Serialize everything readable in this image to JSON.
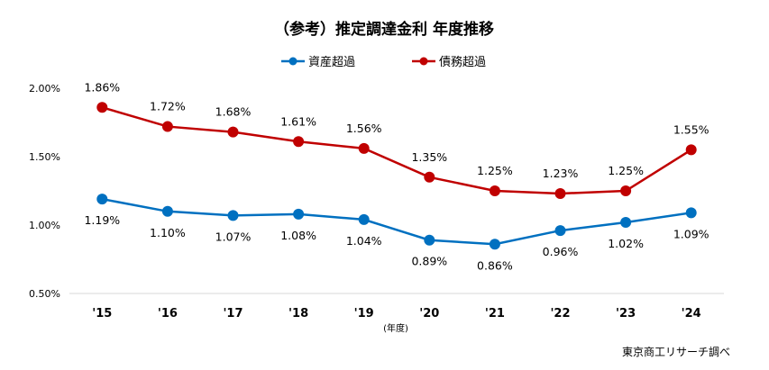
{
  "chart_data": {
    "type": "line",
    "title": "（参考）推定調達金利 年度推移",
    "xlabel": "(年度)",
    "ylabel": "",
    "categories": [
      "'15",
      "'16",
      "'17",
      "'18",
      "'19",
      "'20",
      "'21",
      "'22",
      "'23",
      "'24"
    ],
    "ylim": [
      0.5,
      2.0
    ],
    "yticks": [
      "0.50%",
      "1.00%",
      "1.50%",
      "2.00%"
    ],
    "ytick_values": [
      0.5,
      1.0,
      1.5,
      2.0
    ],
    "grid": false,
    "legend_position": "top",
    "series": [
      {
        "name": "資産超過",
        "color": "#0070C0",
        "values": [
          1.19,
          1.1,
          1.07,
          1.08,
          1.04,
          0.89,
          0.86,
          0.96,
          1.02,
          1.09
        ],
        "labels": [
          "1.19%",
          "1.10%",
          "1.07%",
          "1.08%",
          "1.04%",
          "0.89%",
          "0.86%",
          "0.96%",
          "1.02%",
          "1.09%"
        ]
      },
      {
        "name": "債務超過",
        "color": "#C00000",
        "values": [
          1.86,
          1.72,
          1.68,
          1.61,
          1.56,
          1.35,
          1.25,
          1.23,
          1.25,
          1.55
        ],
        "labels": [
          "1.86%",
          "1.72%",
          "1.68%",
          "1.61%",
          "1.56%",
          "1.35%",
          "1.25%",
          "1.23%",
          "1.25%",
          "1.55%"
        ]
      }
    ]
  },
  "source": "東京商工リサーチ調べ"
}
